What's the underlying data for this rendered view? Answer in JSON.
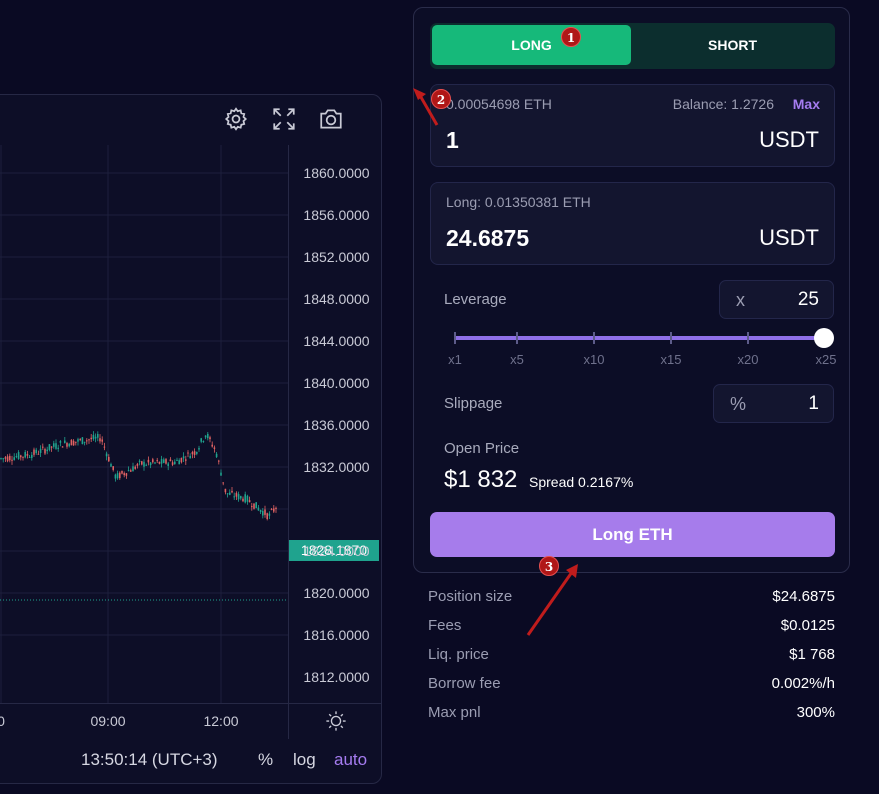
{
  "chart": {
    "price_ticks": [
      "1860.0000",
      "1856.0000",
      "1852.0000",
      "1848.0000",
      "1844.0000",
      "1840.0000",
      "1836.0000",
      "1832.0000",
      "1824.0000",
      "1820.0000",
      "1816.0000",
      "1812.0000"
    ],
    "current_price": "1828.1870",
    "time_ticks": [
      "0",
      "09:00",
      "12:00"
    ],
    "clock": "13:50:14 (UTC+3)",
    "footer": {
      "percent": "%",
      "log": "log",
      "auto": "auto"
    },
    "icons": [
      "gear-icon",
      "fullscreen-icon",
      "camera-icon",
      "sun-icon"
    ],
    "colors": {
      "up": "#1fa38e",
      "down": "#e06262",
      "accent": "#a57cf0"
    }
  },
  "trade": {
    "tabs": {
      "long": "LONG",
      "short": "SHORT"
    },
    "pay": {
      "label": "0.00054698 ETH",
      "balance": "Balance: 1.2726",
      "max": "Max",
      "amount": "1",
      "unit": "USDT"
    },
    "receive": {
      "label": "Long: 0.01350381 ETH",
      "amount": "24.6875",
      "unit": "USDT"
    },
    "leverage": {
      "label": "Leverage",
      "prefix": "x",
      "value": "25",
      "marks": [
        "x1",
        "x5",
        "x10",
        "x15",
        "x20",
        "x25"
      ],
      "level": 1.0
    },
    "slippage": {
      "label": "Slippage",
      "prefix": "%",
      "value": "1"
    },
    "open_price": {
      "label": "Open Price",
      "value": "$1 832",
      "spread": "Spread 0.2167%"
    },
    "submit": "Long ETH",
    "colors": {
      "long": "#16b97a",
      "submit": "#a67ceb"
    }
  },
  "summary": [
    {
      "key": "Position size",
      "value": "$24.6875"
    },
    {
      "key": "Fees",
      "value": "$0.0125"
    },
    {
      "key": "Liq. price",
      "value": "$1 768"
    },
    {
      "key": "Borrow fee",
      "value": "0.002%/h"
    },
    {
      "key": "Max pnl",
      "value": "300%"
    }
  ],
  "annotations": [
    "1",
    "2",
    "3"
  ]
}
